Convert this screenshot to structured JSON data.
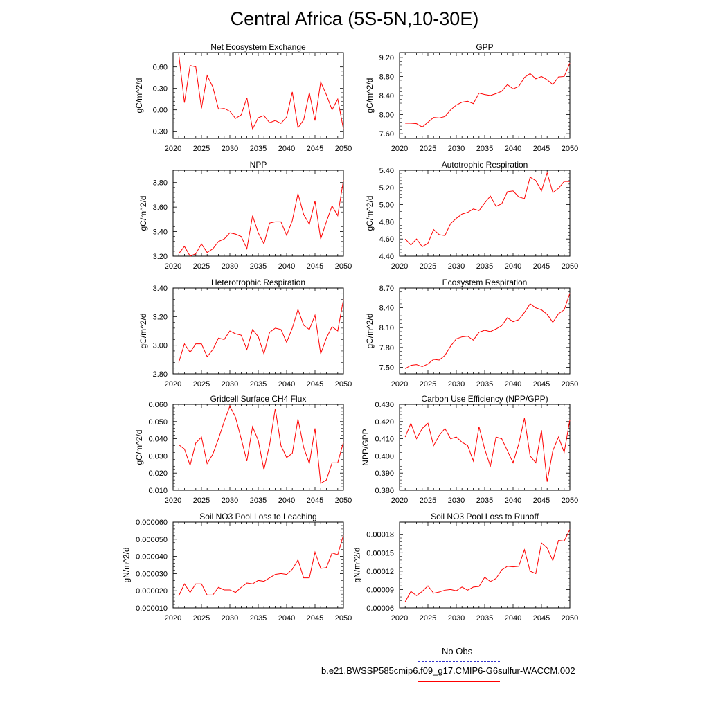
{
  "title": "Central Africa (5S-5N,10-30E)",
  "legend": {
    "items": [
      {
        "label": "No Obs",
        "color": "#3333cc",
        "style": "dashed"
      },
      {
        "label": "b.e21.BWSSP585cmip6.f09_g17.CMIP6-G6sulfur-WACCM.002",
        "color": "#ff0000",
        "style": "solid"
      }
    ]
  },
  "chart_data": [
    {
      "type": "line",
      "title": "Net Ecosystem Exchange",
      "ylabel": "gC/m^2/d",
      "xlim": [
        2020,
        2050
      ],
      "ylim": [
        -0.4,
        0.8
      ],
      "xticks": [
        "2020",
        "2025",
        "2030",
        "2035",
        "2040",
        "2045",
        "2050"
      ],
      "yticks": [
        "-0.30",
        "0.00",
        "0.30",
        "0.60"
      ],
      "x": [
        2021,
        2022,
        2023,
        2024,
        2025,
        2026,
        2027,
        2028,
        2029,
        2030,
        2031,
        2032,
        2033,
        2034,
        2035,
        2036,
        2037,
        2038,
        2039,
        2040,
        2041,
        2042,
        2043,
        2044,
        2045,
        2046,
        2047,
        2048,
        2049,
        2050
      ],
      "series": [
        {
          "color": "#ff0000",
          "values": [
            0.78,
            0.1,
            0.62,
            0.6,
            0.02,
            0.48,
            0.32,
            0.01,
            0.02,
            -0.02,
            -0.12,
            -0.07,
            0.17,
            -0.27,
            -0.11,
            -0.08,
            -0.18,
            -0.15,
            -0.19,
            -0.1,
            0.25,
            -0.25,
            -0.14,
            0.24,
            -0.15,
            0.39,
            0.21,
            0.0,
            0.15,
            -0.27
          ]
        }
      ]
    },
    {
      "type": "line",
      "title": "GPP",
      "ylabel": "gC/m^2/d",
      "xlim": [
        2020,
        2050
      ],
      "ylim": [
        7.5,
        9.3
      ],
      "xticks": [
        "2020",
        "2025",
        "2030",
        "2035",
        "2040",
        "2045",
        "2050"
      ],
      "yticks": [
        "7.60",
        "8.00",
        "8.40",
        "8.80",
        "9.20"
      ],
      "x": [
        2021,
        2022,
        2023,
        2024,
        2025,
        2026,
        2027,
        2028,
        2029,
        2030,
        2031,
        2032,
        2033,
        2034,
        2035,
        2036,
        2037,
        2038,
        2039,
        2040,
        2041,
        2042,
        2043,
        2044,
        2045,
        2046,
        2047,
        2048,
        2049,
        2050
      ],
      "series": [
        {
          "color": "#ff0000",
          "values": [
            7.82,
            7.82,
            7.81,
            7.74,
            7.84,
            7.94,
            7.93,
            7.96,
            8.1,
            8.2,
            8.26,
            8.28,
            8.23,
            8.45,
            8.42,
            8.4,
            8.44,
            8.49,
            8.63,
            8.54,
            8.59,
            8.78,
            8.86,
            8.75,
            8.8,
            8.73,
            8.63,
            8.79,
            8.8,
            9.08
          ]
        }
      ]
    },
    {
      "type": "line",
      "title": "NPP",
      "ylabel": "gC/m^2/d",
      "xlim": [
        2020,
        2050
      ],
      "ylim": [
        3.2,
        3.9
      ],
      "xticks": [
        "2020",
        "2025",
        "2030",
        "2035",
        "2040",
        "2045",
        "2050"
      ],
      "yticks": [
        "3.20",
        "3.40",
        "3.60",
        "3.80"
      ],
      "x": [
        2021,
        2022,
        2023,
        2024,
        2025,
        2026,
        2027,
        2028,
        2029,
        2030,
        2031,
        2032,
        2033,
        2034,
        2035,
        2036,
        2037,
        2038,
        2039,
        2040,
        2041,
        2042,
        2043,
        2044,
        2045,
        2046,
        2047,
        2048,
        2049,
        2050
      ],
      "series": [
        {
          "color": "#ff0000",
          "values": [
            3.22,
            3.28,
            3.2,
            3.22,
            3.3,
            3.23,
            3.26,
            3.32,
            3.34,
            3.39,
            3.38,
            3.36,
            3.26,
            3.53,
            3.39,
            3.3,
            3.47,
            3.48,
            3.48,
            3.37,
            3.49,
            3.71,
            3.54,
            3.46,
            3.65,
            3.34,
            3.48,
            3.61,
            3.53,
            3.82
          ]
        }
      ]
    },
    {
      "type": "line",
      "title": "Autotrophic Respiration",
      "ylabel": "gC/m^2/d",
      "xlim": [
        2020,
        2050
      ],
      "ylim": [
        4.4,
        5.4
      ],
      "xticks": [
        "2020",
        "2025",
        "2030",
        "2035",
        "2040",
        "2045",
        "2050"
      ],
      "yticks": [
        "4.40",
        "4.60",
        "4.80",
        "5.00",
        "5.20",
        "5.40"
      ],
      "x": [
        2021,
        2022,
        2023,
        2024,
        2025,
        2026,
        2027,
        2028,
        2029,
        2030,
        2031,
        2032,
        2033,
        2034,
        2035,
        2036,
        2037,
        2038,
        2039,
        2040,
        2041,
        2042,
        2043,
        2044,
        2045,
        2046,
        2047,
        2048,
        2049,
        2050
      ],
      "series": [
        {
          "color": "#ff0000",
          "values": [
            4.6,
            4.53,
            4.6,
            4.51,
            4.55,
            4.71,
            4.65,
            4.64,
            4.78,
            4.84,
            4.89,
            4.91,
            4.95,
            4.93,
            5.02,
            5.1,
            4.98,
            5.01,
            5.15,
            5.16,
            5.09,
            5.07,
            5.32,
            5.28,
            5.16,
            5.37,
            5.14,
            5.19,
            5.27,
            5.27
          ]
        }
      ]
    },
    {
      "type": "line",
      "title": "Heterotrophic Respiration",
      "ylabel": "gC/m^2/d",
      "xlim": [
        2020,
        2050
      ],
      "ylim": [
        2.8,
        3.4
      ],
      "xticks": [
        "2020",
        "2025",
        "2030",
        "2035",
        "2040",
        "2045",
        "2050"
      ],
      "yticks": [
        "2.80",
        "3.00",
        "3.20",
        "3.40"
      ],
      "x": [
        2021,
        2022,
        2023,
        2024,
        2025,
        2026,
        2027,
        2028,
        2029,
        2030,
        2031,
        2032,
        2033,
        2034,
        2035,
        2036,
        2037,
        2038,
        2039,
        2040,
        2041,
        2042,
        2043,
        2044,
        2045,
        2046,
        2047,
        2048,
        2049,
        2050
      ],
      "series": [
        {
          "color": "#ff0000",
          "values": [
            2.88,
            3.01,
            2.95,
            3.01,
            3.01,
            2.92,
            2.97,
            3.05,
            3.04,
            3.1,
            3.08,
            3.07,
            2.97,
            3.11,
            3.06,
            2.94,
            3.09,
            3.12,
            3.11,
            3.02,
            3.12,
            3.25,
            3.14,
            3.11,
            3.21,
            2.94,
            3.05,
            3.13,
            3.1,
            3.32
          ]
        }
      ]
    },
    {
      "type": "line",
      "title": "Ecosystem Respiration",
      "ylabel": "gC/m^2/d",
      "xlim": [
        2020,
        2050
      ],
      "ylim": [
        7.4,
        8.7
      ],
      "xticks": [
        "2020",
        "2025",
        "2030",
        "2035",
        "2040",
        "2045",
        "2050"
      ],
      "yticks": [
        "7.50",
        "7.80",
        "8.10",
        "8.40",
        "8.70"
      ],
      "x": [
        2021,
        2022,
        2023,
        2024,
        2025,
        2026,
        2027,
        2028,
        2029,
        2030,
        2031,
        2032,
        2033,
        2034,
        2035,
        2036,
        2037,
        2038,
        2039,
        2040,
        2041,
        2042,
        2043,
        2044,
        2045,
        2046,
        2047,
        2048,
        2049,
        2050
      ],
      "series": [
        {
          "color": "#ff0000",
          "values": [
            7.48,
            7.53,
            7.54,
            7.51,
            7.55,
            7.62,
            7.61,
            7.68,
            7.82,
            7.93,
            7.96,
            7.97,
            7.91,
            8.03,
            8.06,
            8.04,
            8.08,
            8.13,
            8.25,
            8.19,
            8.22,
            8.33,
            8.46,
            8.4,
            8.37,
            8.3,
            8.18,
            8.31,
            8.37,
            8.62
          ]
        }
      ]
    },
    {
      "type": "line",
      "title": "Gridcell Surface CH4 Flux",
      "ylabel": "gC/m^2/d",
      "xlim": [
        2020,
        2050
      ],
      "ylim": [
        0.01,
        0.06
      ],
      "xticks": [
        "2020",
        "2025",
        "2030",
        "2035",
        "2040",
        "2045",
        "2050"
      ],
      "yticks": [
        "0.010",
        "0.020",
        "0.030",
        "0.040",
        "0.050",
        "0.060"
      ],
      "x": [
        2021,
        2022,
        2023,
        2024,
        2025,
        2026,
        2027,
        2028,
        2029,
        2030,
        2031,
        2032,
        2033,
        2034,
        2035,
        2036,
        2037,
        2038,
        2039,
        2040,
        2041,
        2042,
        2043,
        2044,
        2045,
        2046,
        2047,
        2048,
        2049,
        2050
      ],
      "series": [
        {
          "color": "#ff0000",
          "values": [
            0.0365,
            0.034,
            0.0245,
            0.0375,
            0.041,
            0.0255,
            0.031,
            0.04,
            0.05,
            0.059,
            0.0525,
            0.04,
            0.027,
            0.047,
            0.039,
            0.022,
            0.0365,
            0.0575,
            0.036,
            0.029,
            0.0315,
            0.0515,
            0.035,
            0.0255,
            0.046,
            0.014,
            0.016,
            0.026,
            0.026,
            0.038
          ]
        }
      ]
    },
    {
      "type": "line",
      "title": "Carbon Use Efficiency (NPP/GPP)",
      "ylabel": "NPP/GPP",
      "xlim": [
        2020,
        2050
      ],
      "ylim": [
        0.38,
        0.43
      ],
      "xticks": [
        "2020",
        "2025",
        "2030",
        "2035",
        "2040",
        "2045",
        "2050"
      ],
      "yticks": [
        "0.380",
        "0.390",
        "0.400",
        "0.410",
        "0.420",
        "0.430"
      ],
      "x": [
        2021,
        2022,
        2023,
        2024,
        2025,
        2026,
        2027,
        2028,
        2029,
        2030,
        2031,
        2032,
        2033,
        2034,
        2035,
        2036,
        2037,
        2038,
        2039,
        2040,
        2041,
        2042,
        2043,
        2044,
        2045,
        2046,
        2047,
        2048,
        2049,
        2050
      ],
      "series": [
        {
          "color": "#ff0000",
          "values": [
            0.411,
            0.419,
            0.41,
            0.416,
            0.419,
            0.406,
            0.412,
            0.416,
            0.41,
            0.411,
            0.408,
            0.406,
            0.397,
            0.417,
            0.404,
            0.394,
            0.411,
            0.41,
            0.403,
            0.396,
            0.407,
            0.422,
            0.4,
            0.396,
            0.415,
            0.385,
            0.403,
            0.411,
            0.402,
            0.421
          ]
        }
      ]
    },
    {
      "type": "line",
      "title": "Soil NO3 Pool Loss to Leaching",
      "ylabel": "gN/m^2/d",
      "xlim": [
        2020,
        2050
      ],
      "ylim": [
        1e-05,
        6e-05
      ],
      "xticks": [
        "2020",
        "2025",
        "2030",
        "2035",
        "2040",
        "2045",
        "2050"
      ],
      "yticks": [
        "0.000010",
        "0.000020",
        "0.000030",
        "0.000040",
        "0.000050",
        "0.000060"
      ],
      "x": [
        2021,
        2022,
        2023,
        2024,
        2025,
        2026,
        2027,
        2028,
        2029,
        2030,
        2031,
        2032,
        2033,
        2034,
        2035,
        2036,
        2037,
        2038,
        2039,
        2040,
        2041,
        2042,
        2043,
        2044,
        2045,
        2046,
        2047,
        2048,
        2049,
        2050
      ],
      "series": [
        {
          "color": "#ff0000",
          "values": [
            1.7e-05,
            2.4e-05,
            1.9e-05,
            2.4e-05,
            2.4e-05,
            1.75e-05,
            1.75e-05,
            2.2e-05,
            2.05e-05,
            2.05e-05,
            1.9e-05,
            2.2e-05,
            2.45e-05,
            2.4e-05,
            2.6e-05,
            2.55e-05,
            2.75e-05,
            2.95e-05,
            3e-05,
            2.95e-05,
            3.25e-05,
            3.8e-05,
            2.75e-05,
            2.75e-05,
            4.25e-05,
            3.3e-05,
            3.35e-05,
            4.2e-05,
            4.1e-05,
            5.25e-05
          ]
        }
      ]
    },
    {
      "type": "line",
      "title": "Soil NO3 Pool Loss to Runoff",
      "ylabel": "gN/m^2/d",
      "xlim": [
        2020,
        2050
      ],
      "ylim": [
        6e-05,
        0.0002
      ],
      "xticks": [
        "2020",
        "2025",
        "2030",
        "2035",
        "2040",
        "2045",
        "2050"
      ],
      "yticks": [
        "0.00006",
        "0.00009",
        "0.00012",
        "0.00015",
        "0.00018"
      ],
      "x": [
        2021,
        2022,
        2023,
        2024,
        2025,
        2026,
        2027,
        2028,
        2029,
        2030,
        2031,
        2032,
        2033,
        2034,
        2035,
        2036,
        2037,
        2038,
        2039,
        2040,
        2041,
        2042,
        2043,
        2044,
        2045,
        2046,
        2047,
        2048,
        2049,
        2050
      ],
      "series": [
        {
          "color": "#ff0000",
          "values": [
            7e-05,
            8.7e-05,
            8e-05,
            8.7e-05,
            9.6e-05,
            8.4e-05,
            8.6e-05,
            8.9e-05,
            9e-05,
            8.8e-05,
            9.4e-05,
            8.9e-05,
            9.4e-05,
            9.5e-05,
            0.00011,
            0.000103,
            0.000108,
            0.000122,
            0.000128,
            0.000127,
            0.000128,
            0.000155,
            0.00012,
            0.000116,
            0.000166,
            0.000158,
            0.000137,
            0.00017,
            0.000169,
            0.000188
          ]
        }
      ]
    }
  ]
}
